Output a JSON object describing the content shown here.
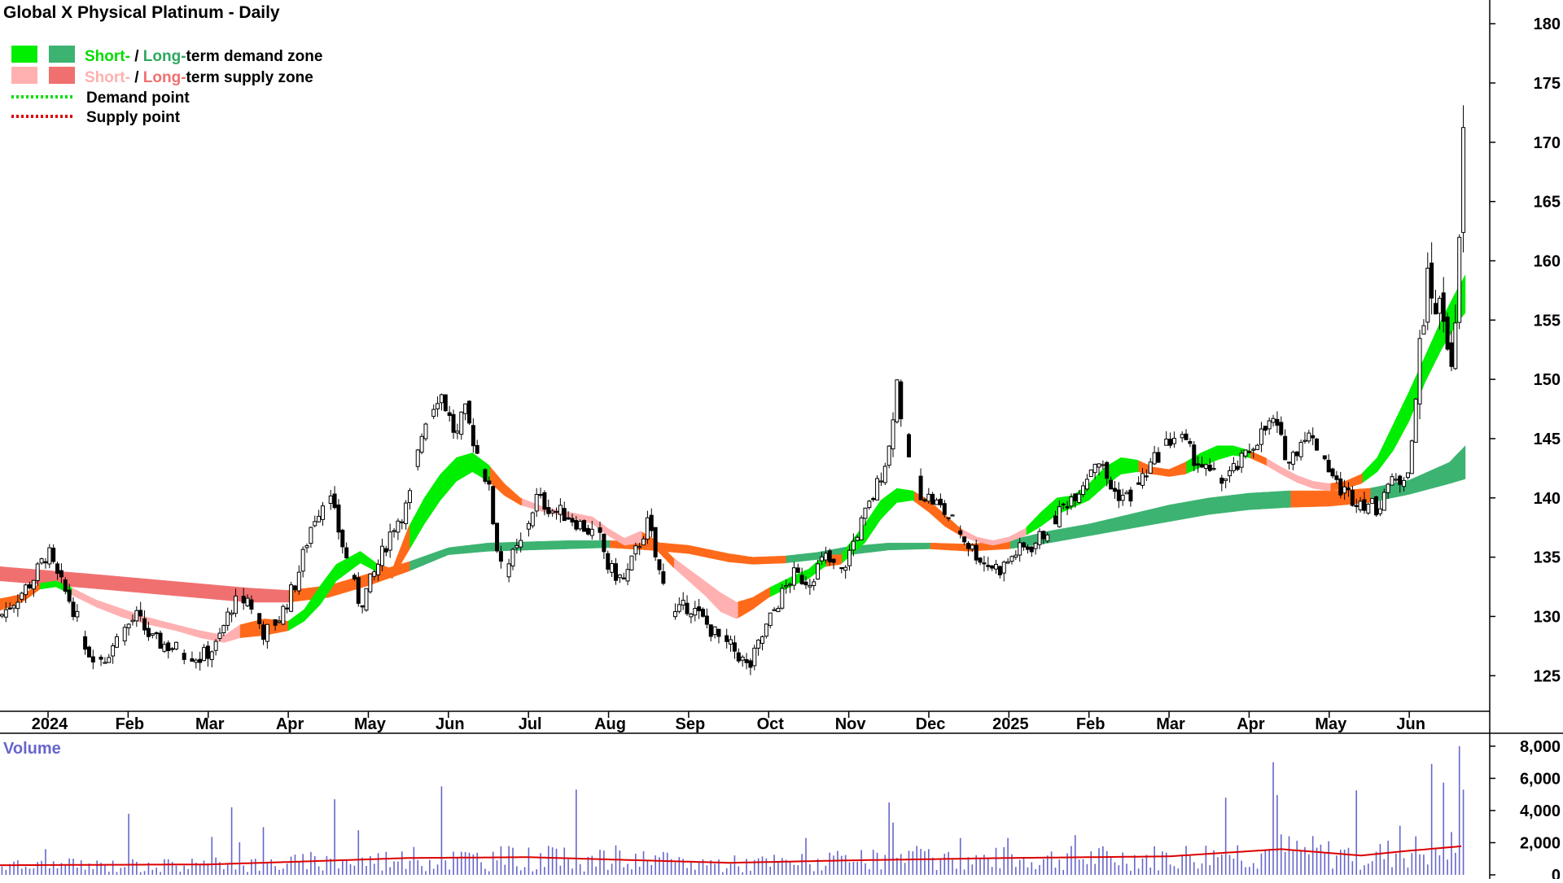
{
  "chart_data": {
    "type": "candlestick",
    "title": "Global X Physical Platinum - Daily",
    "legend": {
      "placement": "top-left",
      "demand_zone": {
        "short": "Short-",
        "separator": " / ",
        "long": "Long-",
        "rest": "term demand zone"
      },
      "supply_zone": {
        "short": "Short-",
        "separator": " / ",
        "long": "Long-",
        "rest": "term supply zone"
      },
      "demand_point": "Demand point",
      "supply_point": "Supply point"
    },
    "colors": {
      "short_demand": "#00ee00",
      "long_demand": "#3cb371",
      "short_supply": "#ffb0b0",
      "long_supply": "#f07070",
      "transition": "#ff6a1a",
      "demand_point": "#00dd00",
      "supply_point": "#dd0000",
      "volume_bars": "#6666cc",
      "volume_ma": "#dd0000"
    },
    "price_axis": {
      "ylim": [
        122,
        182
      ],
      "ticks": [
        "180",
        "175",
        "170",
        "165",
        "160",
        "155",
        "150",
        "145",
        "140",
        "135",
        "130",
        "125"
      ],
      "grid": false,
      "position": "right"
    },
    "x_axis": {
      "labels": [
        "2024",
        "Feb",
        "Mar",
        "Apr",
        "May",
        "Jun",
        "Jul",
        "Aug",
        "Sep",
        "Oct",
        "Nov",
        "Dec",
        "2025",
        "Feb",
        "Mar",
        "Apr",
        "May",
        "Jun"
      ],
      "label_months": [
        0,
        1,
        2,
        3,
        4,
        5,
        6,
        7,
        8,
        9,
        10,
        11,
        12,
        13,
        14,
        15,
        16,
        17
      ],
      "start_month": -0.6,
      "end_month": 17.7
    },
    "price_path": {
      "description": "monthly index (0 = Jan 2024) and approximate close",
      "points": [
        [
          -0.6,
          130
        ],
        [
          -0.4,
          131.5
        ],
        [
          -0.2,
          133
        ],
        [
          0.0,
          135.5
        ],
        [
          0.1,
          133.5
        ],
        [
          0.3,
          131
        ],
        [
          0.5,
          127
        ],
        [
          0.7,
          126.5
        ],
        [
          0.9,
          128.5
        ],
        [
          1.1,
          130
        ],
        [
          1.3,
          128
        ],
        [
          1.5,
          127.5
        ],
        [
          1.7,
          127
        ],
        [
          1.9,
          126.5
        ],
        [
          2.1,
          127.5
        ],
        [
          2.3,
          131
        ],
        [
          2.5,
          131.5
        ],
        [
          2.7,
          128.5
        ],
        [
          2.9,
          130
        ],
        [
          3.1,
          133
        ],
        [
          3.3,
          138
        ],
        [
          3.5,
          140.5
        ],
        [
          3.7,
          135.5
        ],
        [
          3.8,
          133
        ],
        [
          3.9,
          131
        ],
        [
          4.1,
          134
        ],
        [
          4.3,
          137.5
        ],
        [
          4.5,
          139.5
        ],
        [
          4.7,
          146.5
        ],
        [
          4.9,
          149
        ],
        [
          5.1,
          145
        ],
        [
          5.2,
          147.5
        ],
        [
          5.35,
          144
        ],
        [
          5.5,
          141
        ],
        [
          5.6,
          136
        ],
        [
          5.7,
          134
        ],
        [
          5.9,
          136
        ],
        [
          6.1,
          140
        ],
        [
          6.3,
          139
        ],
        [
          6.5,
          138.5
        ],
        [
          6.7,
          137.5
        ],
        [
          6.9,
          136.5
        ],
        [
          7.0,
          134
        ],
        [
          7.2,
          133
        ],
        [
          7.4,
          136.5
        ],
        [
          7.5,
          138
        ],
        [
          7.6,
          134.5
        ],
        [
          7.8,
          130
        ],
        [
          8.0,
          131
        ],
        [
          8.2,
          129.5
        ],
        [
          8.4,
          128
        ],
        [
          8.6,
          127
        ],
        [
          8.75,
          125.5
        ],
        [
          8.9,
          128
        ],
        [
          9.1,
          131
        ],
        [
          9.3,
          133.5
        ],
        [
          9.5,
          133
        ],
        [
          9.7,
          135
        ],
        [
          9.9,
          133.5
        ],
        [
          10.1,
          137
        ],
        [
          10.3,
          140
        ],
        [
          10.5,
          144
        ],
        [
          10.6,
          150
        ],
        [
          10.7,
          144.5
        ],
        [
          10.9,
          140.5
        ],
        [
          11.1,
          139.5
        ],
        [
          11.3,
          138
        ],
        [
          11.5,
          136
        ],
        [
          11.7,
          134.5
        ],
        [
          11.9,
          134
        ],
        [
          12.1,
          135.5
        ],
        [
          12.3,
          136
        ],
        [
          12.5,
          137.5
        ],
        [
          12.7,
          139.5
        ],
        [
          12.9,
          141
        ],
        [
          13.1,
          143.5
        ],
        [
          13.3,
          140.5
        ],
        [
          13.5,
          140
        ],
        [
          13.7,
          142
        ],
        [
          13.9,
          144
        ],
        [
          14.1,
          145.5
        ],
        [
          14.3,
          143.5
        ],
        [
          14.5,
          142
        ],
        [
          14.7,
          141.5
        ],
        [
          14.9,
          143
        ],
        [
          15.1,
          145
        ],
        [
          15.3,
          146.5
        ],
        [
          15.5,
          143
        ],
        [
          15.7,
          145.5
        ],
        [
          15.9,
          144
        ],
        [
          16.1,
          141
        ],
        [
          16.3,
          140
        ],
        [
          16.5,
          139.5
        ],
        [
          16.6,
          139
        ],
        [
          16.7,
          141
        ],
        [
          16.9,
          141.5
        ],
        [
          17.0,
          143
        ],
        [
          17.1,
          149
        ],
        [
          17.15,
          155.5
        ],
        [
          17.25,
          158
        ],
        [
          17.35,
          156
        ],
        [
          17.45,
          155
        ],
        [
          17.5,
          153
        ],
        [
          17.55,
          151
        ],
        [
          17.6,
          155.5
        ],
        [
          17.65,
          166
        ],
        [
          17.7,
          176
        ]
      ]
    },
    "short_term_band": {
      "description": "short-term zone: [month, lower, upper, state] where state d=demand, s=supply, t=transition",
      "points": [
        [
          -0.6,
          130.5,
          131.5,
          "t"
        ],
        [
          -0.3,
          131.3,
          131.9,
          "t"
        ],
        [
          -0.1,
          132.3,
          132.8,
          "d"
        ],
        [
          0.1,
          132.5,
          133.0,
          "d"
        ],
        [
          0.3,
          131.8,
          132.4,
          "s"
        ],
        [
          0.6,
          130.8,
          131.4,
          "s"
        ],
        [
          0.9,
          130.0,
          130.7,
          "s"
        ],
        [
          1.2,
          129.4,
          130.0,
          "s"
        ],
        [
          1.6,
          128.8,
          129.3,
          "s"
        ],
        [
          1.9,
          128.2,
          128.8,
          "s"
        ],
        [
          2.2,
          127.8,
          128.4,
          "s"
        ],
        [
          2.4,
          128.2,
          129.3,
          "t"
        ],
        [
          2.7,
          128.4,
          129.8,
          "t"
        ],
        [
          3.0,
          128.8,
          129.6,
          "d"
        ],
        [
          3.2,
          129.6,
          130.6,
          "d"
        ],
        [
          3.4,
          131.0,
          132.6,
          "d"
        ],
        [
          3.6,
          133.0,
          134.4,
          "d"
        ],
        [
          3.9,
          134.5,
          135.5,
          "d"
        ],
        [
          4.1,
          133.8,
          134.5,
          "t"
        ],
        [
          4.3,
          133.2,
          134.0,
          "t"
        ],
        [
          4.5,
          135.5,
          137.5,
          "d"
        ],
        [
          4.7,
          137.8,
          140.0,
          "d"
        ],
        [
          4.9,
          139.8,
          142.0,
          "d"
        ],
        [
          5.1,
          141.4,
          143.4,
          "d"
        ],
        [
          5.3,
          142.2,
          143.8,
          "d"
        ],
        [
          5.5,
          141.4,
          142.8,
          "t"
        ],
        [
          5.7,
          140.2,
          141.2,
          "t"
        ],
        [
          5.9,
          139.4,
          140.0,
          "s"
        ],
        [
          6.2,
          138.8,
          139.2,
          "s"
        ],
        [
          6.5,
          138.4,
          138.8,
          "s"
        ],
        [
          6.8,
          137.8,
          138.4,
          "s"
        ],
        [
          7.0,
          136.8,
          137.4,
          "s"
        ],
        [
          7.2,
          136.0,
          136.6,
          "s"
        ],
        [
          7.4,
          136.2,
          137.2,
          "t"
        ],
        [
          7.6,
          135.6,
          136.4,
          "t"
        ],
        [
          7.8,
          134.2,
          135.0,
          "s"
        ],
        [
          8.0,
          133.0,
          134.0,
          "s"
        ],
        [
          8.2,
          131.8,
          133.0,
          "s"
        ],
        [
          8.4,
          130.4,
          132.0,
          "s"
        ],
        [
          8.6,
          129.8,
          131.2,
          "t"
        ],
        [
          8.8,
          130.6,
          131.6,
          "t"
        ],
        [
          9.0,
          131.6,
          132.4,
          "d"
        ],
        [
          9.3,
          132.6,
          133.4,
          "d"
        ],
        [
          9.5,
          133.2,
          134.0,
          "d"
        ],
        [
          9.7,
          134.2,
          135.2,
          "t"
        ],
        [
          9.9,
          134.4,
          135.2,
          "d"
        ],
        [
          10.2,
          136.2,
          137.8,
          "d"
        ],
        [
          10.4,
          138.2,
          139.8,
          "d"
        ],
        [
          10.6,
          139.6,
          140.8,
          "d"
        ],
        [
          10.8,
          139.8,
          140.6,
          "t"
        ],
        [
          11.0,
          138.8,
          139.8,
          "t"
        ],
        [
          11.2,
          137.6,
          138.6,
          "t"
        ],
        [
          11.4,
          136.8,
          137.4,
          "s"
        ],
        [
          11.6,
          136.3,
          136.7,
          "s"
        ],
        [
          11.8,
          136.0,
          136.4,
          "s"
        ],
        [
          12.0,
          136.3,
          136.7,
          "s"
        ],
        [
          12.2,
          136.8,
          137.4,
          "d"
        ],
        [
          12.4,
          137.6,
          138.8,
          "d"
        ],
        [
          12.6,
          138.6,
          140.0,
          "d"
        ],
        [
          12.8,
          139.2,
          140.2,
          "d"
        ],
        [
          13.0,
          139.8,
          141.2,
          "d"
        ],
        [
          13.2,
          141.0,
          142.6,
          "d"
        ],
        [
          13.4,
          142.0,
          143.4,
          "d"
        ],
        [
          13.6,
          142.2,
          143.2,
          "t"
        ],
        [
          13.8,
          142.0,
          142.6,
          "t"
        ],
        [
          14.0,
          141.8,
          142.4,
          "t"
        ],
        [
          14.2,
          142.0,
          143.0,
          "d"
        ],
        [
          14.4,
          142.6,
          143.8,
          "d"
        ],
        [
          14.6,
          143.2,
          144.4,
          "d"
        ],
        [
          14.8,
          143.6,
          144.4,
          "d"
        ],
        [
          15.0,
          143.4,
          144.0,
          "t"
        ],
        [
          15.2,
          142.8,
          143.4,
          "s"
        ],
        [
          15.4,
          142.0,
          142.6,
          "s"
        ],
        [
          15.6,
          141.3,
          141.9,
          "s"
        ],
        [
          15.8,
          140.8,
          141.4,
          "s"
        ],
        [
          16.0,
          140.6,
          141.2,
          "t"
        ],
        [
          16.2,
          140.8,
          141.4,
          "t"
        ],
        [
          16.4,
          141.2,
          142.0,
          "d"
        ],
        [
          16.6,
          142.2,
          143.4,
          "d"
        ],
        [
          16.8,
          144.0,
          146.2,
          "d"
        ],
        [
          17.0,
          146.5,
          149.0,
          "d"
        ],
        [
          17.2,
          149.8,
          152.0,
          "d"
        ],
        [
          17.4,
          152.5,
          155.0,
          "d"
        ],
        [
          17.6,
          154.8,
          157.6,
          "d"
        ],
        [
          17.7,
          155.6,
          158.8,
          "d"
        ]
      ]
    },
    "long_term_band": {
      "description": "long-term zone: [month, lower, upper, state]",
      "points": [
        [
          -0.6,
          133.0,
          134.2,
          "s"
        ],
        [
          0.5,
          132.4,
          133.6,
          "s"
        ],
        [
          1.5,
          131.8,
          133.0,
          "s"
        ],
        [
          2.5,
          131.2,
          132.4,
          "s"
        ],
        [
          3.0,
          131.2,
          132.2,
          "t"
        ],
        [
          3.5,
          131.6,
          132.6,
          "t"
        ],
        [
          4.0,
          132.6,
          133.6,
          "t"
        ],
        [
          4.5,
          133.8,
          134.6,
          "d"
        ],
        [
          5.0,
          135.2,
          135.8,
          "d"
        ],
        [
          5.5,
          135.5,
          136.2,
          "d"
        ],
        [
          6.0,
          135.6,
          136.3,
          "d"
        ],
        [
          6.5,
          135.7,
          136.4,
          "d"
        ],
        [
          7.0,
          135.8,
          136.4,
          "t"
        ],
        [
          7.5,
          135.6,
          136.3,
          "t"
        ],
        [
          8.0,
          135.3,
          136.0,
          "t"
        ],
        [
          8.5,
          134.6,
          135.3,
          "t"
        ],
        [
          8.8,
          134.4,
          135.0,
          "t"
        ],
        [
          9.2,
          134.5,
          135.1,
          "d"
        ],
        [
          9.6,
          134.8,
          135.4,
          "d"
        ],
        [
          10.0,
          135.2,
          135.9,
          "d"
        ],
        [
          10.5,
          135.6,
          136.2,
          "d"
        ],
        [
          11.0,
          135.7,
          136.2,
          "t"
        ],
        [
          11.5,
          135.5,
          136.1,
          "t"
        ],
        [
          12.0,
          135.7,
          136.4,
          "d"
        ],
        [
          12.5,
          136.2,
          137.2,
          "d"
        ],
        [
          13.0,
          136.8,
          137.8,
          "d"
        ],
        [
          13.5,
          137.4,
          138.6,
          "d"
        ],
        [
          14.0,
          138.0,
          139.4,
          "d"
        ],
        [
          14.5,
          138.6,
          140.0,
          "d"
        ],
        [
          15.0,
          139.0,
          140.4,
          "d"
        ],
        [
          15.5,
          139.2,
          140.6,
          "t"
        ],
        [
          16.0,
          139.3,
          140.6,
          "t"
        ],
        [
          16.5,
          139.6,
          140.8,
          "d"
        ],
        [
          17.0,
          140.3,
          141.5,
          "d"
        ],
        [
          17.5,
          141.2,
          143.0,
          "d"
        ],
        [
          17.7,
          141.6,
          144.4,
          "d"
        ]
      ]
    },
    "volume_axis": {
      "label": "Volume",
      "ylim": [
        0,
        8500
      ],
      "ticks": [
        "8,000",
        "6,000",
        "4,000",
        "2,000",
        "0"
      ]
    },
    "volume_spikes": [
      [
        1.0,
        3800
      ],
      [
        2.3,
        4200
      ],
      [
        3.6,
        4700
      ],
      [
        4.9,
        5500
      ],
      [
        6.6,
        5300
      ],
      [
        10.5,
        4500
      ],
      [
        14.7,
        4800
      ],
      [
        15.3,
        7000
      ],
      [
        17.3,
        6900
      ],
      [
        17.62,
        8000
      ],
      [
        17.66,
        5300
      ]
    ],
    "volume_ma": [
      [
        -0.6,
        600
      ],
      [
        2.0,
        650
      ],
      [
        3.0,
        800
      ],
      [
        4.5,
        1050
      ],
      [
        6.0,
        1100
      ],
      [
        8.5,
        750
      ],
      [
        10.0,
        900
      ],
      [
        12.0,
        1050
      ],
      [
        14.0,
        1150
      ],
      [
        15.4,
        1600
      ],
      [
        16.4,
        1200
      ],
      [
        17.0,
        1500
      ],
      [
        17.7,
        1800
      ]
    ]
  }
}
